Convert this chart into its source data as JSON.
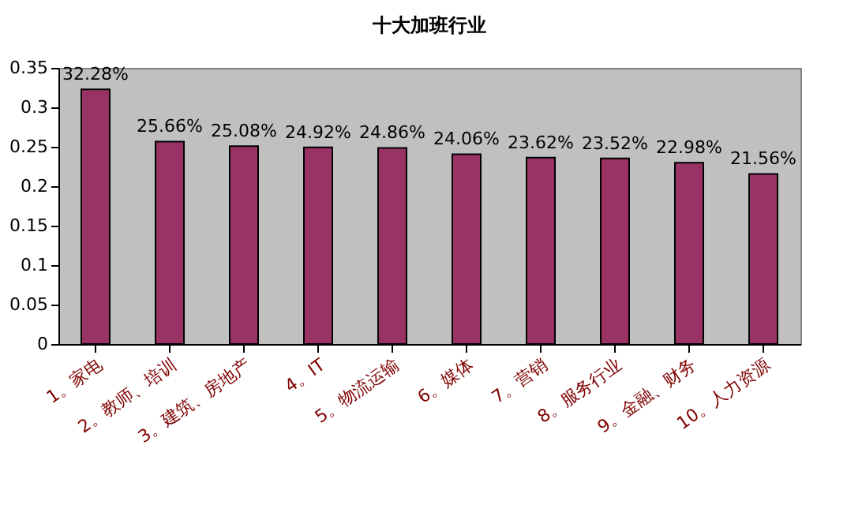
{
  "chart_data": {
    "type": "bar",
    "title": "十大加班行业",
    "categories": [
      "1。家电",
      "2。教师、培训",
      "3。建筑、房地产",
      "4。IT",
      "5。物流运输",
      "6。媒体",
      "7。营销",
      "8。服务行业",
      "9。金融、财务",
      "10。人力资源"
    ],
    "values": [
      0.3228,
      0.2566,
      0.2508,
      0.2492,
      0.2486,
      0.2406,
      0.2362,
      0.2352,
      0.2298,
      0.2156
    ],
    "value_labels": [
      "32.28%",
      "25.66%",
      "25.08%",
      "24.92%",
      "24.86%",
      "24.06%",
      "23.62%",
      "23.52%",
      "22.98%",
      "21.56%"
    ],
    "color": "#993366",
    "ylim": [
      0,
      0.35
    ],
    "yticks": [
      0,
      0.05,
      0.1,
      0.15,
      0.2,
      0.25,
      0.3,
      0.35
    ],
    "grid": false
  }
}
